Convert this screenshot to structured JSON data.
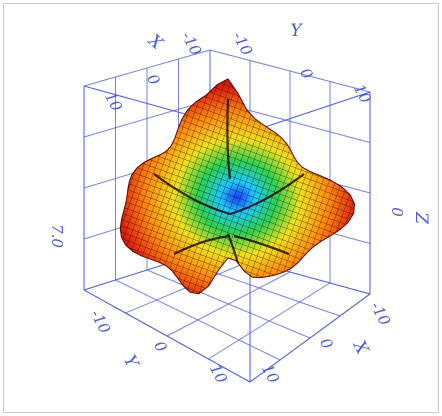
{
  "chart_data": {
    "type": "surface3d",
    "title": "",
    "surface": "closed radial 3D surface (spherical-harmonic-like lobes) rendered with a black wireframe mesh",
    "colormap": [
      "#1a3cff",
      "#20c8ff",
      "#30d050",
      "#f0e020",
      "#ff8a10",
      "#e02010",
      "#b01008"
    ],
    "axis_color": "#4b5bd6",
    "grid": true,
    "axes": {
      "x": {
        "label": "X",
        "ticks": [
          "-10",
          "0",
          "10"
        ],
        "lim": [
          -10,
          10
        ]
      },
      "y": {
        "label": "Y",
        "ticks": [
          "-10",
          "0",
          "10"
        ],
        "lim": [
          -10,
          10
        ]
      },
      "z": {
        "label": "Z",
        "ticks": [
          "0"
        ],
        "lim": [
          -10,
          10
        ]
      }
    },
    "annotations": [
      "7.0"
    ]
  }
}
